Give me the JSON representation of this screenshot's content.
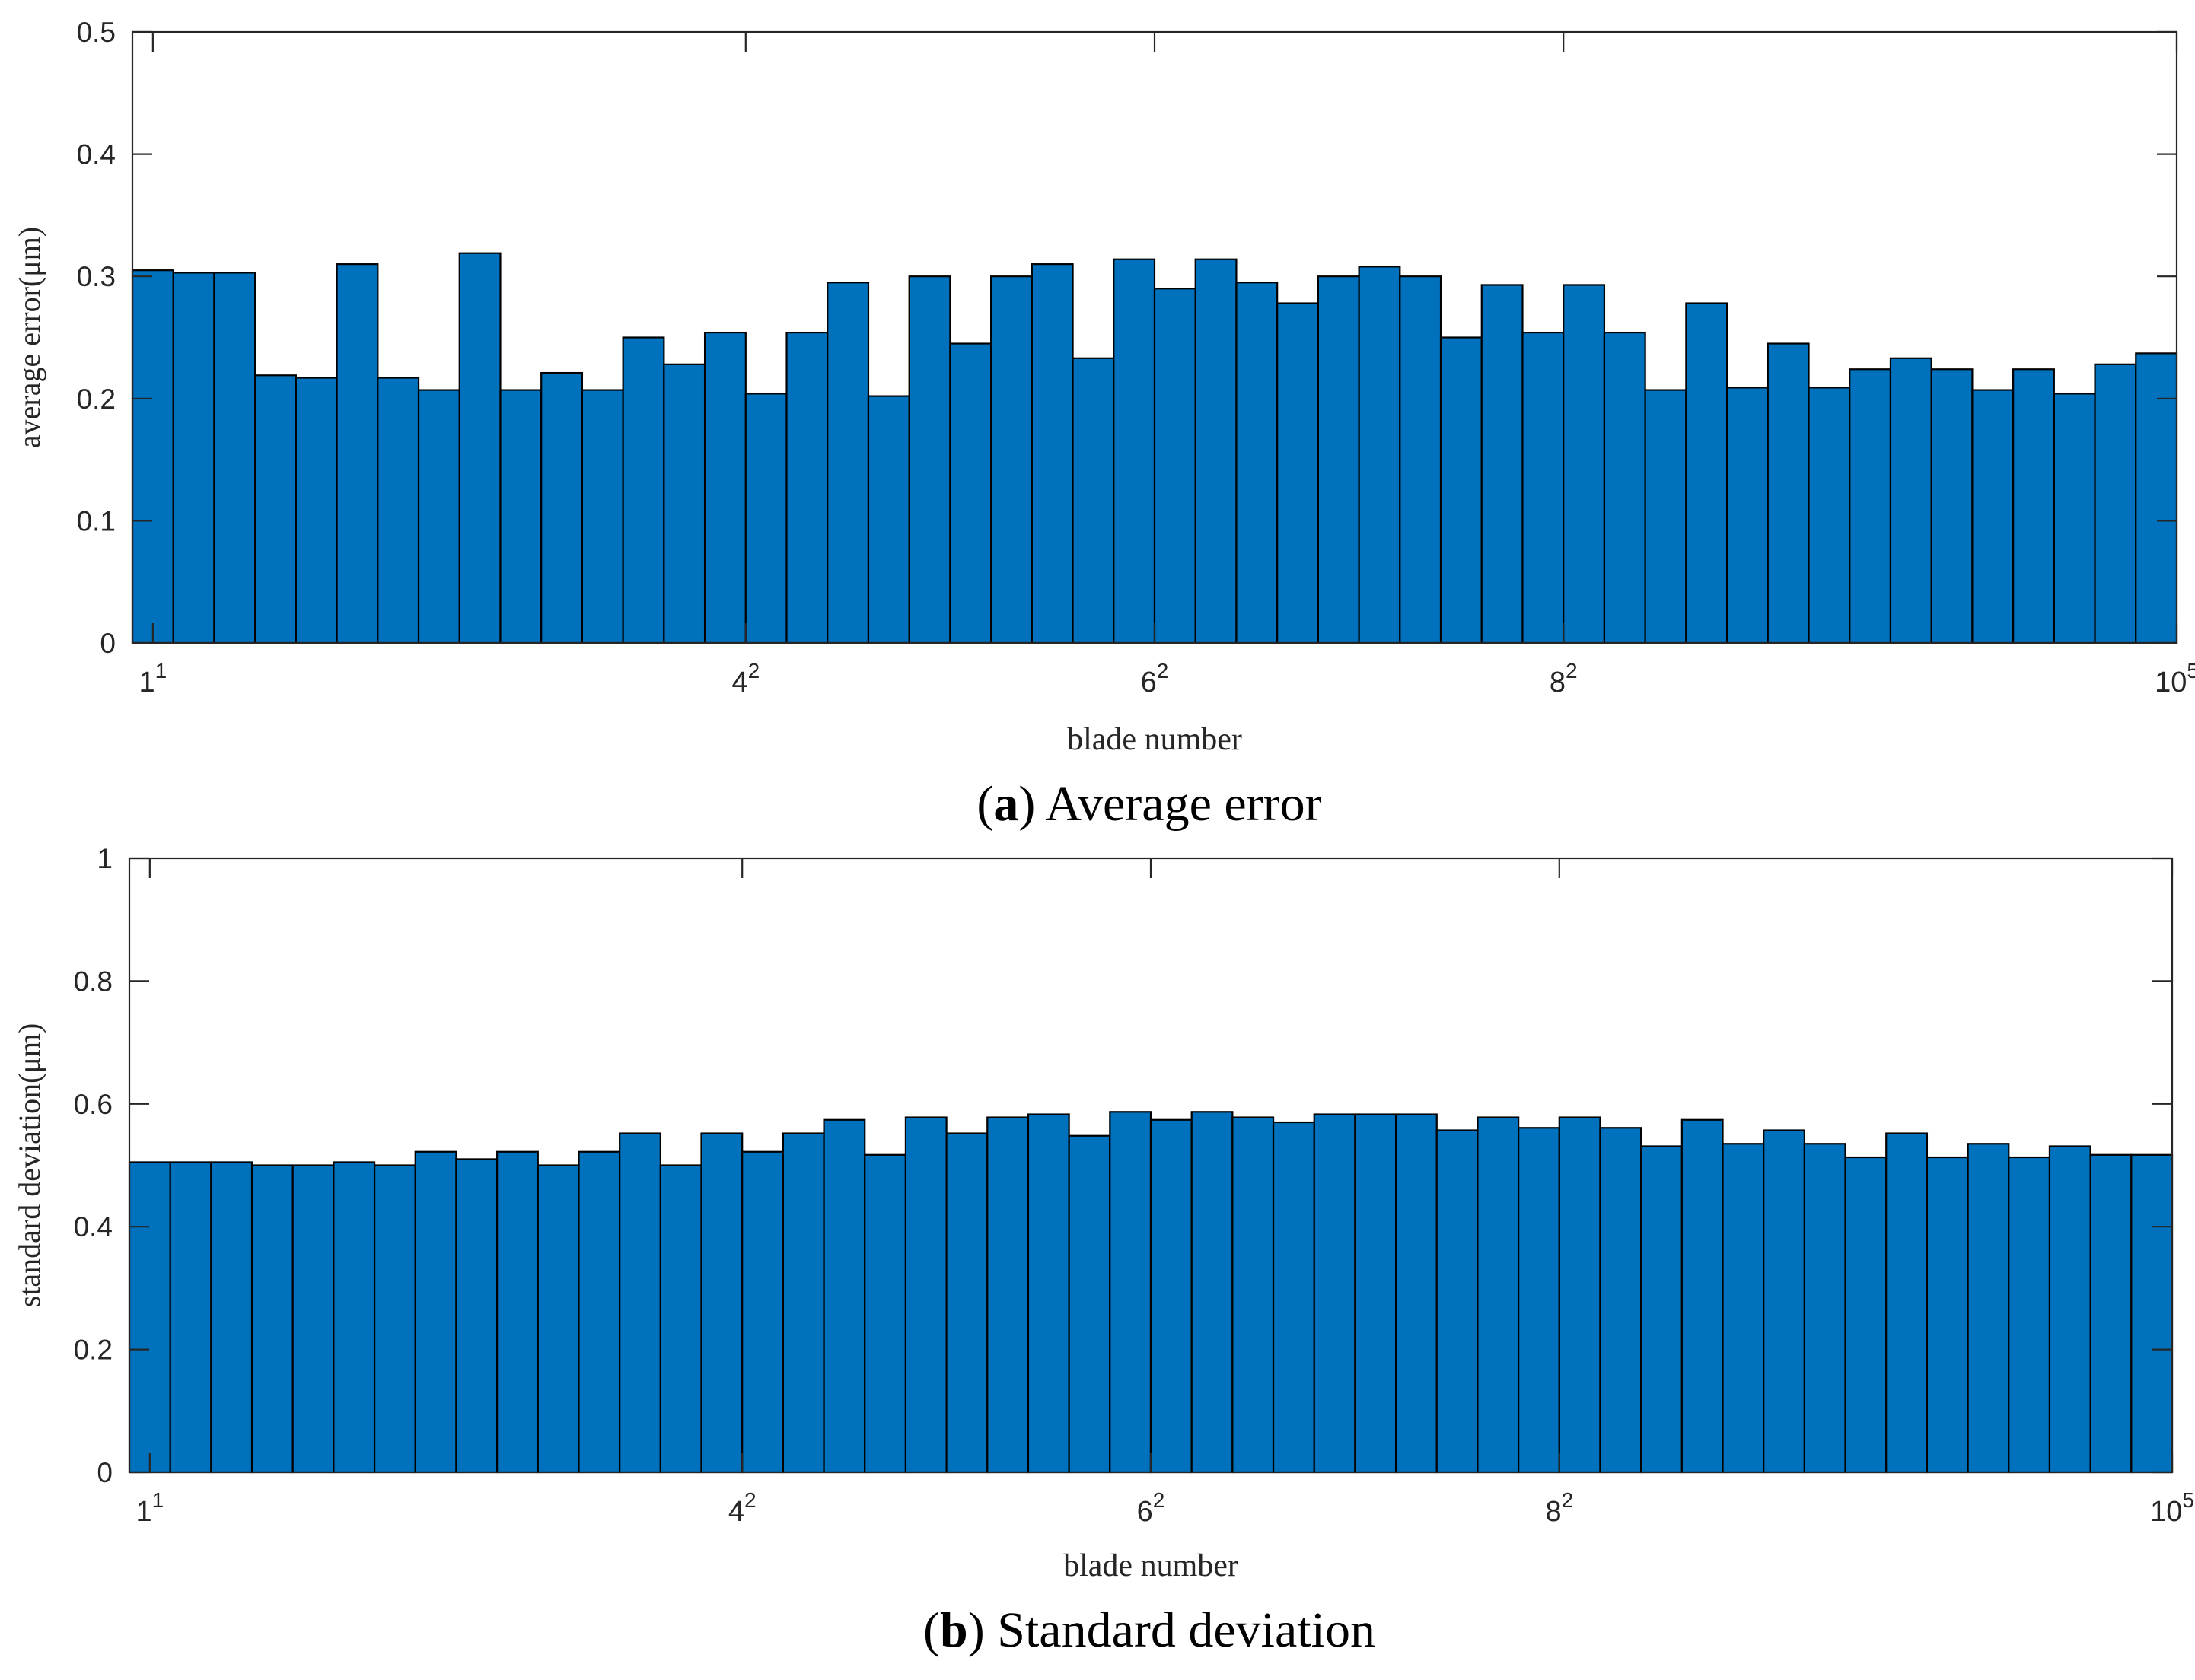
{
  "chart_data": [
    {
      "type": "bar",
      "panel": "a",
      "caption_letter": "a",
      "caption_text": "Average error",
      "xlabel": "blade number",
      "ylabel": "average error(μm)",
      "ylim": [
        0,
        0.5
      ],
      "yticks": [
        "0",
        "0.1",
        "0.2",
        "0.3",
        "0.4",
        "0.5"
      ],
      "ytick_values": [
        0,
        0.1,
        0.2,
        0.3,
        0.4,
        0.5
      ],
      "xticks": [
        {
          "base": "1",
          "exp": "1",
          "bar_index": 0
        },
        {
          "base": "4",
          "exp": "2",
          "bar_index": 14.5
        },
        {
          "base": "6",
          "exp": "2",
          "bar_index": 24.5
        },
        {
          "base": "8",
          "exp": "2",
          "bar_index": 34.5
        },
        {
          "base": "10",
          "exp": "5",
          "bar_index": 49.5
        }
      ],
      "bar_color": "#0072BD",
      "values": [
        0.305,
        0.303,
        0.303,
        0.219,
        0.217,
        0.31,
        0.217,
        0.207,
        0.319,
        0.207,
        0.221,
        0.207,
        0.25,
        0.228,
        0.254,
        0.204,
        0.254,
        0.295,
        0.202,
        0.3,
        0.245,
        0.3,
        0.31,
        0.233,
        0.314,
        0.29,
        0.314,
        0.295,
        0.278,
        0.3,
        0.308,
        0.3,
        0.25,
        0.293,
        0.254,
        0.293,
        0.254,
        0.207,
        0.278,
        0.209,
        0.245,
        0.209,
        0.224,
        0.233,
        0.224,
        0.207,
        0.224,
        0.204,
        0.228,
        0.237
      ]
    },
    {
      "type": "bar",
      "panel": "b",
      "caption_letter": "b",
      "caption_text": "Standard deviation",
      "xlabel": "blade number",
      "ylabel": "standard deviation(μm)",
      "ylim": [
        0,
        1
      ],
      "yticks": [
        "0",
        "0.2",
        "0.4",
        "0.6",
        "0.8",
        "1"
      ],
      "ytick_values": [
        0,
        0.2,
        0.4,
        0.6,
        0.8,
        1
      ],
      "xticks": [
        {
          "base": "1",
          "exp": "1",
          "bar_index": 0
        },
        {
          "base": "4",
          "exp": "2",
          "bar_index": 14.5
        },
        {
          "base": "6",
          "exp": "2",
          "bar_index": 24.5
        },
        {
          "base": "8",
          "exp": "2",
          "bar_index": 34.5
        },
        {
          "base": "10",
          "exp": "5",
          "bar_index": 49.5
        }
      ],
      "bar_color": "#0072BD",
      "values": [
        0.505,
        0.505,
        0.505,
        0.5,
        0.5,
        0.505,
        0.5,
        0.522,
        0.51,
        0.522,
        0.5,
        0.522,
        0.552,
        0.5,
        0.552,
        0.522,
        0.552,
        0.574,
        0.517,
        0.578,
        0.552,
        0.578,
        0.583,
        0.548,
        0.587,
        0.574,
        0.587,
        0.578,
        0.57,
        0.583,
        0.583,
        0.583,
        0.557,
        0.578,
        0.561,
        0.578,
        0.561,
        0.531,
        0.574,
        0.535,
        0.557,
        0.535,
        0.513,
        0.552,
        0.513,
        0.535,
        0.513,
        0.531,
        0.517,
        0.517
      ]
    }
  ]
}
